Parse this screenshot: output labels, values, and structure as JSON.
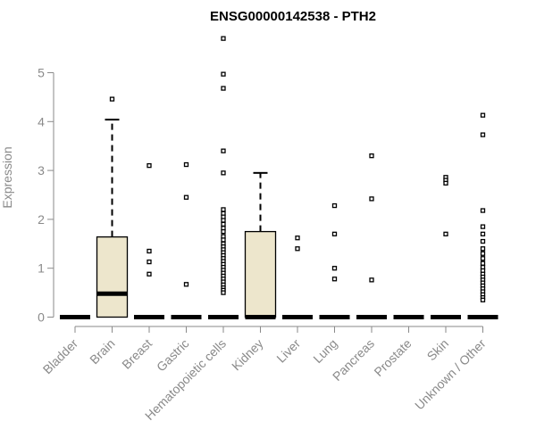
{
  "chart_data": {
    "type": "boxplot",
    "title": "ENSG00000142538 - PTH2",
    "ylabel": "Expression",
    "xlabel": "",
    "ylim": [
      0,
      5.8
    ],
    "yticks": [
      0,
      1,
      2,
      3,
      4,
      5
    ],
    "box_color": "#ede6cc",
    "categories": [
      {
        "name": "Bladder",
        "q1": 0,
        "median": 0,
        "q3": 0,
        "whisker_low": 0,
        "whisker_high": 0,
        "outliers": []
      },
      {
        "name": "Brain",
        "q1": 0,
        "median": 0.48,
        "q3": 1.64,
        "whisker_low": 0,
        "whisker_high": 4.04,
        "outliers": [
          4.46
        ]
      },
      {
        "name": "Breast",
        "q1": 0,
        "median": 0,
        "q3": 0,
        "whisker_low": 0,
        "whisker_high": 0,
        "outliers": [
          3.1,
          1.35,
          1.13,
          0.88
        ]
      },
      {
        "name": "Gastric",
        "q1": 0,
        "median": 0,
        "q3": 0,
        "whisker_low": 0,
        "whisker_high": 0,
        "outliers": [
          3.12,
          2.45,
          0.67
        ]
      },
      {
        "name": "Hematopoietic cells",
        "q1": 0,
        "median": 0,
        "q3": 0,
        "whisker_low": 0,
        "whisker_high": 0,
        "outliers": [
          5.7,
          4.97,
          4.68,
          3.4,
          2.95,
          2.2,
          2.12,
          2.05,
          1.98,
          1.9,
          1.82,
          1.75,
          1.65,
          1.58,
          1.5,
          1.44,
          1.38,
          1.32,
          1.26,
          1.2,
          1.14,
          1.08,
          1.02,
          0.96,
          0.9,
          0.84,
          0.78,
          0.72,
          0.66,
          0.6,
          0.55,
          0.5
        ]
      },
      {
        "name": "Kidney",
        "q1": 0,
        "median": 0,
        "q3": 1.75,
        "whisker_low": 0,
        "whisker_high": 2.95,
        "outliers": []
      },
      {
        "name": "Liver",
        "q1": 0,
        "median": 0,
        "q3": 0,
        "whisker_low": 0,
        "whisker_high": 0,
        "outliers": [
          1.62,
          1.4
        ]
      },
      {
        "name": "Lung",
        "q1": 0,
        "median": 0,
        "q3": 0,
        "whisker_low": 0,
        "whisker_high": 0,
        "outliers": [
          2.28,
          1.7,
          1.0,
          0.78
        ]
      },
      {
        "name": "Pancreas",
        "q1": 0,
        "median": 0,
        "q3": 0,
        "whisker_low": 0,
        "whisker_high": 0,
        "outliers": [
          3.3,
          2.42,
          0.76
        ]
      },
      {
        "name": "Prostate",
        "q1": 0,
        "median": 0,
        "q3": 0,
        "whisker_low": 0,
        "whisker_high": 0,
        "outliers": []
      },
      {
        "name": "Skin",
        "q1": 0,
        "median": 0,
        "q3": 0,
        "whisker_low": 0,
        "whisker_high": 0,
        "outliers": [
          2.86,
          2.8,
          2.74,
          1.7
        ]
      },
      {
        "name": "Unknown / Other",
        "q1": 0,
        "median": 0,
        "q3": 0,
        "whisker_low": 0,
        "whisker_high": 0,
        "outliers": [
          4.13,
          3.73,
          2.18,
          1.85,
          1.7,
          1.55,
          1.4,
          1.3,
          1.2,
          1.1,
          1.02,
          0.95,
          0.88,
          0.82,
          0.76,
          0.7,
          0.64,
          0.58,
          0.52,
          0.46,
          0.4,
          0.35
        ]
      }
    ]
  }
}
